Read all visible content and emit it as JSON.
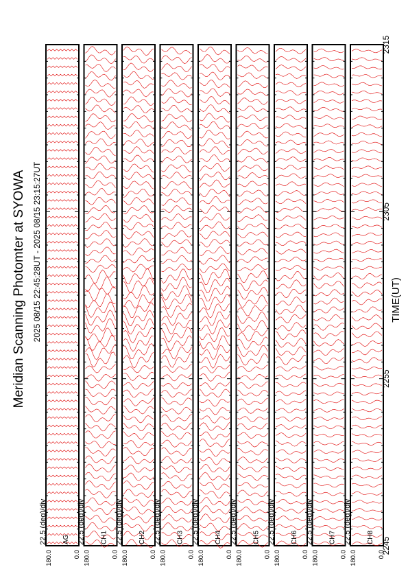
{
  "title": "Meridian Scanning Photomter at SYOWA",
  "time_range": "2025 08/15 22:45:28UT - 2025 08/15 23:15:27UT",
  "chart_data": {
    "type": "line",
    "xlabel": "TIME(UT)",
    "x_ticks": [
      "2245",
      "2255",
      "2305",
      "2315"
    ],
    "x_range": [
      "22:45",
      "23:15"
    ],
    "trace_color": "#e00000",
    "panels": [
      {
        "name": "AG",
        "scale": "22.5 (deg)/div",
        "y_top": "180.0",
        "y_bottom": "0.0",
        "activity": 0.0
      },
      {
        "name": "CH1",
        "scale": "22.5 (deg)/div",
        "y_top": "180.0",
        "y_bottom": "0.0",
        "activity": 0.95
      },
      {
        "name": "CH2",
        "scale": "22.5 (deg)/div",
        "y_top": "180.0",
        "y_bottom": "0.0",
        "activity": 0.95
      },
      {
        "name": "CH3",
        "scale": "22.5 (deg)/div",
        "y_top": "180.0",
        "y_bottom": "0.0",
        "activity": 0.9
      },
      {
        "name": "CH4",
        "scale": "22.5 (deg)/div",
        "y_top": "180.0",
        "y_bottom": "0.0",
        "activity": 1.0
      },
      {
        "name": "CH5",
        "scale": "22.5 (deg)/div",
        "y_top": "180.0",
        "y_bottom": "0.0",
        "activity": 0.75
      },
      {
        "name": "CH6",
        "scale": "22.5 (deg)/div",
        "y_top": "180.0",
        "y_bottom": "0.0",
        "activity": 0.6
      },
      {
        "name": "CH7",
        "scale": "22.5 (deg)/div",
        "y_top": "180.0",
        "y_bottom": "0.0",
        "activity": 0.45
      },
      {
        "name": "CH8",
        "scale": "22.5 (deg)/div",
        "y_top": "180.0",
        "y_bottom": "0.0",
        "activity": 0.4
      }
    ]
  }
}
